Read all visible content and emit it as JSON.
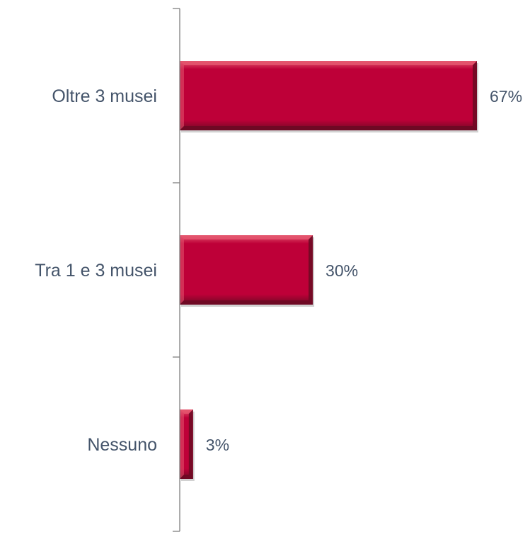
{
  "chart_data": {
    "type": "bar",
    "orientation": "horizontal",
    "categories": [
      "Oltre 3 musei",
      "Tra 1 e 3 musei",
      "Nessuno"
    ],
    "values": [
      67,
      30,
      3
    ],
    "data_labels": [
      "67%",
      "30%",
      "3%"
    ],
    "unit": "%",
    "xlim": [
      0,
      75
    ],
    "grid": false,
    "legend": "none",
    "colors": {
      "bar": "#be0038",
      "bar_dark": "#6e0a24",
      "bar_light": "#e4566f",
      "axis": "#808080",
      "text": "#44546a"
    }
  }
}
